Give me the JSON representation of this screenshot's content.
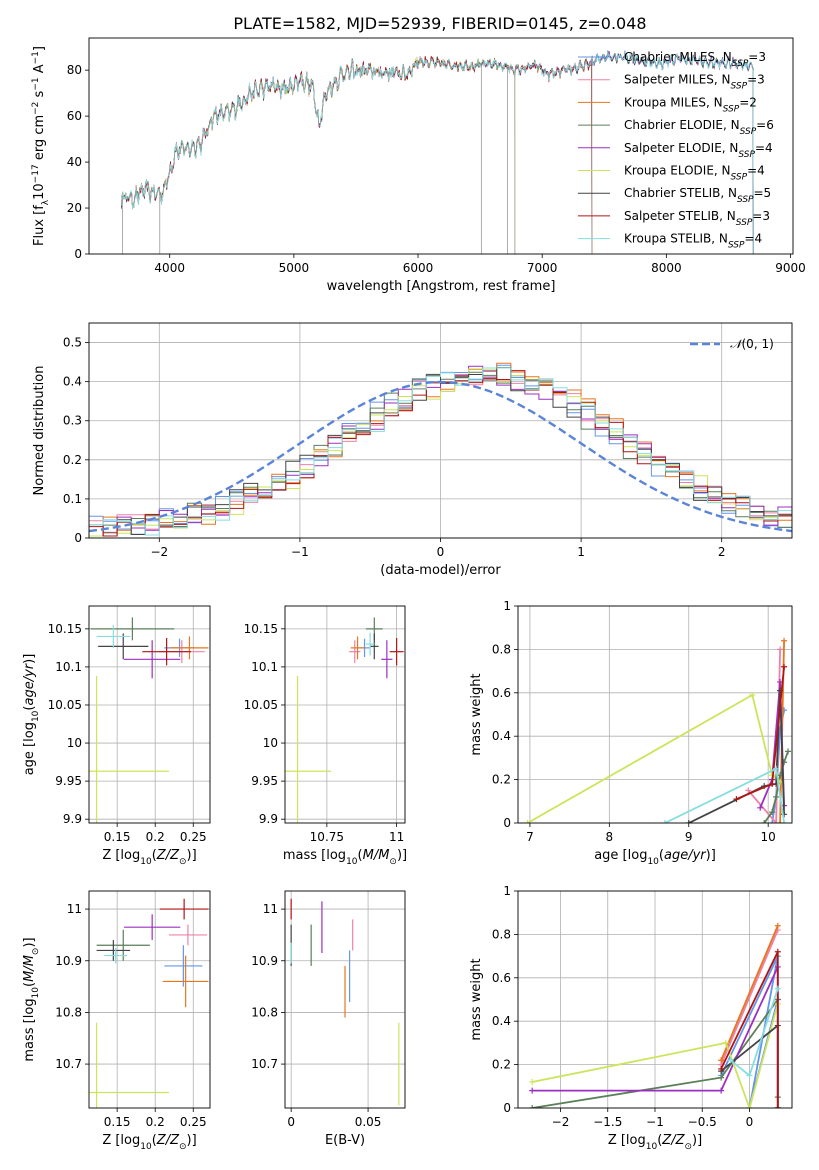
{
  "figure": {
    "title": "PLATE=1582, MJD=52939, FIBERID=0145, z=0.048"
  },
  "models": [
    {
      "name": "Chabrier MILES, N_SSP=3",
      "imf": "Chabrier",
      "lib": "MILES",
      "nssp": "3",
      "color": "#6495ed"
    },
    {
      "name": "Salpeter MILES, N_SSP=3",
      "imf": "Salpeter",
      "lib": "MILES",
      "nssp": "3",
      "color": "#f080a8"
    },
    {
      "name": "Kroupa MILES, N_SSP=2",
      "imf": "Kroupa",
      "lib": "MILES",
      "nssp": "2",
      "color": "#e8761e"
    },
    {
      "name": "Chabrier ELODIE, N_SSP=6",
      "imf": "Chabrier",
      "lib": "ELODIE",
      "nssp": "6",
      "color": "#5a7f5a"
    },
    {
      "name": "Salpeter ELODIE, N_SSP=4",
      "imf": "Salpeter",
      "lib": "ELODIE",
      "nssp": "4",
      "color": "#9b30c0"
    },
    {
      "name": "Kroupa ELODIE, N_SSP=4",
      "imf": "Kroupa",
      "lib": "ELODIE",
      "nssp": "4",
      "color": "#cbe55a"
    },
    {
      "name": "Chabrier STELIB, N_SSP=5",
      "imf": "Chabrier",
      "lib": "STELIB",
      "nssp": "5",
      "color": "#444444"
    },
    {
      "name": "Salpeter STELIB, N_SSP=3",
      "imf": "Salpeter",
      "lib": "STELIB",
      "nssp": "3",
      "color": "#b01515"
    },
    {
      "name": "Kroupa STELIB, N_SSP=4",
      "imf": "Kroupa",
      "lib": "STELIB",
      "nssp": "4",
      "color": "#85dde0"
    }
  ],
  "chart_data": [
    {
      "id": "spectrum",
      "type": "line",
      "xlabel": "wavelength [Angstrom, rest frame]",
      "ylabel": "Flux [f_λ 10^-17 erg cm^-2 s^-1 A^-1]",
      "xlim": [
        3350,
        9020
      ],
      "ylim": [
        0,
        94
      ],
      "xticks": [
        4000,
        5000,
        6000,
        7000,
        8000,
        9000
      ],
      "yticks": [
        0,
        20,
        40,
        60,
        80
      ],
      "legend_position": "right",
      "continuum": [
        [
          3610,
          25
        ],
        [
          3700,
          24
        ],
        [
          3800,
          28
        ],
        [
          3900,
          26
        ],
        [
          3950,
          27
        ],
        [
          4050,
          45
        ],
        [
          4150,
          46
        ],
        [
          4250,
          48
        ],
        [
          4350,
          60
        ],
        [
          4500,
          62
        ],
        [
          4650,
          70
        ],
        [
          4800,
          73
        ],
        [
          4950,
          72
        ],
        [
          5050,
          76
        ],
        [
          5150,
          73
        ],
        [
          5200,
          57
        ],
        [
          5260,
          70
        ],
        [
          5400,
          79
        ],
        [
          5550,
          80
        ],
        [
          5700,
          79
        ],
        [
          5850,
          79
        ],
        [
          5900,
          78
        ],
        [
          6000,
          84
        ],
        [
          6150,
          83
        ],
        [
          6300,
          82
        ],
        [
          6450,
          82
        ],
        [
          6600,
          83
        ],
        [
          6800,
          80
        ],
        [
          6950,
          82
        ],
        [
          7050,
          78
        ],
        [
          7200,
          80
        ],
        [
          7350,
          82
        ],
        [
          7420,
          84
        ],
        [
          7500,
          86
        ],
        [
          7650,
          86
        ],
        [
          7800,
          84
        ],
        [
          7950,
          83
        ],
        [
          8100,
          85
        ],
        [
          8250,
          84
        ],
        [
          8400,
          83
        ],
        [
          8550,
          83
        ],
        [
          8700,
          82
        ]
      ],
      "fit_ends": [
        8700,
        8700,
        7400,
        8700,
        8700,
        6780,
        8700,
        7400,
        8700
      ],
      "dropouts": [
        3620,
        3920,
        6510,
        6720,
        6780,
        7400
      ]
    },
    {
      "id": "residuals",
      "type": "histogram",
      "xlabel": "(data-model)/error",
      "ylabel": "Normed distribution",
      "xlim": [
        -2.5,
        2.5
      ],
      "ylim": [
        0,
        0.55
      ],
      "xticks": [
        -2,
        -1,
        0,
        1,
        2
      ],
      "yticks": [
        0.0,
        0.1,
        0.2,
        0.3,
        0.4,
        0.5
      ],
      "grid": true,
      "legend_label": "N(0,1)",
      "normal_color": "#5b84d8"
    },
    {
      "id": "age-vs-Z",
      "type": "errorbar",
      "xlabel": "Z [log10(Z/Z⊙)]",
      "ylabel": "age [log10(age/yr)]",
      "xlim": [
        0.113,
        0.272
      ],
      "ylim": [
        9.895,
        10.18
      ],
      "xticks": [
        0.15,
        0.2,
        0.25
      ],
      "yticks": [
        9.9,
        9.95,
        10.0,
        10.05,
        10.1,
        10.15
      ],
      "points": [
        {
          "x": 0.232,
          "y": 10.125,
          "ex": 0.02,
          "ey": 0.012
        },
        {
          "x": 0.235,
          "y": 10.12,
          "ex": 0.03,
          "ey": 0.015
        },
        {
          "x": 0.245,
          "y": 10.125,
          "ex": 0.025,
          "ey": 0.015
        },
        {
          "x": 0.17,
          "y": 10.15,
          "ex": 0.055,
          "ey": 0.015
        },
        {
          "x": 0.196,
          "y": 10.11,
          "ex": 0.037,
          "ey": 0.025
        },
        {
          "x": 0.123,
          "y": 9.963,
          "ex": 0.095,
          "ey": 0.125
        },
        {
          "x": 0.158,
          "y": 10.127,
          "ex": 0.033,
          "ey": 0.017
        },
        {
          "x": 0.215,
          "y": 10.12,
          "ex": 0.032,
          "ey": 0.018
        },
        {
          "x": 0.145,
          "y": 10.14,
          "ex": 0.022,
          "ey": 0.015
        }
      ]
    },
    {
      "id": "age-vs-mass",
      "type": "errorbar",
      "xlabel": "mass [log10(M/M⊙)]",
      "ylabel": "",
      "xlim": [
        10.6,
        11.03
      ],
      "ylim": [
        9.895,
        10.18
      ],
      "xticks": [
        10.75,
        11.0
      ],
      "yticks": [
        9.9,
        9.95,
        10.0,
        10.05,
        10.1,
        10.15
      ],
      "points": [
        {
          "x": 10.885,
          "y": 10.125,
          "ex": 0.02,
          "ey": 0.012
        },
        {
          "x": 10.85,
          "y": 10.12,
          "ex": 0.02,
          "ey": 0.015
        },
        {
          "x": 10.86,
          "y": 10.125,
          "ex": 0.025,
          "ey": 0.015
        },
        {
          "x": 10.92,
          "y": 10.15,
          "ex": 0.03,
          "ey": 0.015
        },
        {
          "x": 10.965,
          "y": 10.11,
          "ex": 0.02,
          "ey": 0.025
        },
        {
          "x": 10.645,
          "y": 9.963,
          "ex": 0.12,
          "ey": 0.125
        },
        {
          "x": 10.92,
          "y": 10.127,
          "ex": 0.015,
          "ey": 0.017
        },
        {
          "x": 11.0,
          "y": 10.12,
          "ex": 0.025,
          "ey": 0.018
        },
        {
          "x": 10.905,
          "y": 10.13,
          "ex": 0.015,
          "ey": 0.015
        }
      ]
    },
    {
      "id": "mass-weight-vs-age",
      "type": "line",
      "xlabel": "age [log10(age/yr)]",
      "ylabel": "mass weight",
      "xlim": [
        6.85,
        10.3
      ],
      "ylim": [
        0,
        1.0
      ],
      "xticks": [
        7,
        8,
        9,
        10
      ],
      "yticks": [
        0.0,
        0.2,
        0.4,
        0.6,
        0.8,
        1.0
      ],
      "grid": true,
      "series": [
        [
          [
            10.05,
            0.0
          ],
          [
            10.1,
            0.12
          ],
          [
            10.15,
            0.43
          ],
          [
            10.2,
            0.52
          ]
        ],
        [
          [
            9.75,
            0.15
          ],
          [
            10.1,
            0.0
          ],
          [
            10.15,
            0.8
          ]
        ],
        [
          [
            10.15,
            0.0
          ],
          [
            10.2,
            0.84
          ]
        ],
        [
          [
            9.95,
            0.0
          ],
          [
            10.05,
            0.05
          ],
          [
            10.1,
            0.12
          ],
          [
            10.15,
            0.22
          ],
          [
            10.2,
            0.28
          ],
          [
            10.25,
            0.33
          ]
        ],
        [
          [
            9.9,
            0.07
          ],
          [
            10.05,
            0.2
          ],
          [
            10.15,
            0.65
          ],
          [
            10.2,
            0.08
          ]
        ],
        [
          [
            6.97,
            0.0
          ],
          [
            9.8,
            0.59
          ],
          [
            10.05,
            0.22
          ],
          [
            10.15,
            0.19
          ]
        ],
        [
          [
            9.0,
            0.0
          ],
          [
            9.95,
            0.17
          ],
          [
            10.1,
            0.18
          ],
          [
            10.15,
            0.61
          ],
          [
            10.2,
            0.04
          ]
        ],
        [
          [
            9.6,
            0.11
          ],
          [
            10.05,
            0.18
          ],
          [
            10.2,
            0.72
          ]
        ],
        [
          [
            8.7,
            0.0
          ],
          [
            10.1,
            0.25
          ],
          [
            10.2,
            0.0
          ]
        ]
      ]
    },
    {
      "id": "mass-vs-Z",
      "type": "errorbar",
      "xlabel": "Z [log10(Z/Z⊙)]",
      "ylabel": "mass [log10(M/M⊙)]",
      "xlim": [
        0.113,
        0.272
      ],
      "ylim": [
        10.615,
        11.035
      ],
      "xticks": [
        0.15,
        0.2,
        0.25
      ],
      "yticks": [
        10.7,
        10.8,
        10.9,
        11.0
      ],
      "points": [
        {
          "x": 0.237,
          "y": 10.89,
          "ex": 0.025,
          "ey": 0.04
        },
        {
          "x": 0.243,
          "y": 10.95,
          "ex": 0.025,
          "ey": 0.02
        },
        {
          "x": 0.24,
          "y": 10.86,
          "ex": 0.03,
          "ey": 0.05
        },
        {
          "x": 0.158,
          "y": 10.93,
          "ex": 0.035,
          "ey": 0.03
        },
        {
          "x": 0.196,
          "y": 10.965,
          "ex": 0.037,
          "ey": 0.025
        },
        {
          "x": 0.123,
          "y": 10.645,
          "ex": 0.095,
          "ey": 0.135
        },
        {
          "x": 0.145,
          "y": 10.92,
          "ex": 0.022,
          "ey": 0.02
        },
        {
          "x": 0.238,
          "y": 11.0,
          "ex": 0.032,
          "ey": 0.02
        },
        {
          "x": 0.148,
          "y": 10.91,
          "ex": 0.015,
          "ey": 0.015
        }
      ]
    },
    {
      "id": "mass-vs-EBV",
      "type": "errorbar",
      "xlabel": "E(B-V)",
      "ylabel": "",
      "xlim": [
        -0.004,
        0.074
      ],
      "ylim": [
        10.615,
        11.035
      ],
      "xticks": [
        0.0,
        0.05
      ],
      "yticks": [
        10.7,
        10.8,
        10.9,
        11.0
      ],
      "points": [
        {
          "x": 0.038,
          "y": 10.87,
          "ex": 0,
          "ey": 0.05
        },
        {
          "x": 0.04,
          "y": 10.95,
          "ex": 0,
          "ey": 0.03
        },
        {
          "x": 0.035,
          "y": 10.84,
          "ex": 0,
          "ey": 0.05
        },
        {
          "x": 0.013,
          "y": 10.93,
          "ex": 0,
          "ey": 0.04
        },
        {
          "x": 0.02,
          "y": 10.965,
          "ex": 0,
          "ey": 0.05
        },
        {
          "x": 0.07,
          "y": 10.7,
          "ex": 0,
          "ey": 0.08
        },
        {
          "x": 0.0,
          "y": 10.93,
          "ex": 0,
          "ey": 0.04
        },
        {
          "x": 0.0,
          "y": 11.0,
          "ex": 0,
          "ey": 0.02
        },
        {
          "x": 0.0,
          "y": 10.915,
          "ex": 0,
          "ey": 0.02
        }
      ]
    },
    {
      "id": "mass-weight-vs-Z",
      "type": "line",
      "xlabel": "Z [log10(Z/Z⊙)]",
      "ylabel": "mass weight",
      "xlim": [
        -2.45,
        0.45
      ],
      "ylim": [
        0,
        1.0
      ],
      "xticks": [
        -2.0,
        -1.5,
        -1.0,
        -0.5,
        0.0
      ],
      "yticks": [
        0.0,
        0.2,
        0.4,
        0.6,
        0.8,
        1.0
      ],
      "grid": true,
      "series": [
        [
          [
            -0.3,
            0.15
          ],
          [
            0.3,
            0.7
          ],
          [
            0.0,
            0.0
          ],
          [
            0.3,
            0.5
          ]
        ],
        [
          [
            -0.3,
            0.2
          ],
          [
            0.3,
            0.82
          ]
        ],
        [
          [
            -0.3,
            0.22
          ],
          [
            0.3,
            0.84
          ]
        ],
        [
          [
            -2.3,
            0.0
          ],
          [
            -0.3,
            0.14
          ],
          [
            0.3,
            0.5
          ],
          [
            0.3,
            0.05
          ]
        ],
        [
          [
            -2.3,
            0.08
          ],
          [
            -0.3,
            0.08
          ],
          [
            0.3,
            0.65
          ],
          [
            0.3,
            0.0
          ]
        ],
        [
          [
            -2.3,
            0.12
          ],
          [
            -0.25,
            0.3
          ],
          [
            0.0,
            0.0
          ],
          [
            0.3,
            0.48
          ]
        ],
        [
          [
            -0.3,
            0.17
          ],
          [
            0.3,
            0.38
          ],
          [
            0.3,
            0.0
          ]
        ],
        [
          [
            -0.3,
            0.18
          ],
          [
            0.3,
            0.72
          ],
          [
            0.3,
            0.0
          ]
        ],
        [
          [
            -0.2,
            0.22
          ],
          [
            0.0,
            0.15
          ],
          [
            0.3,
            0.55
          ]
        ]
      ]
    }
  ]
}
